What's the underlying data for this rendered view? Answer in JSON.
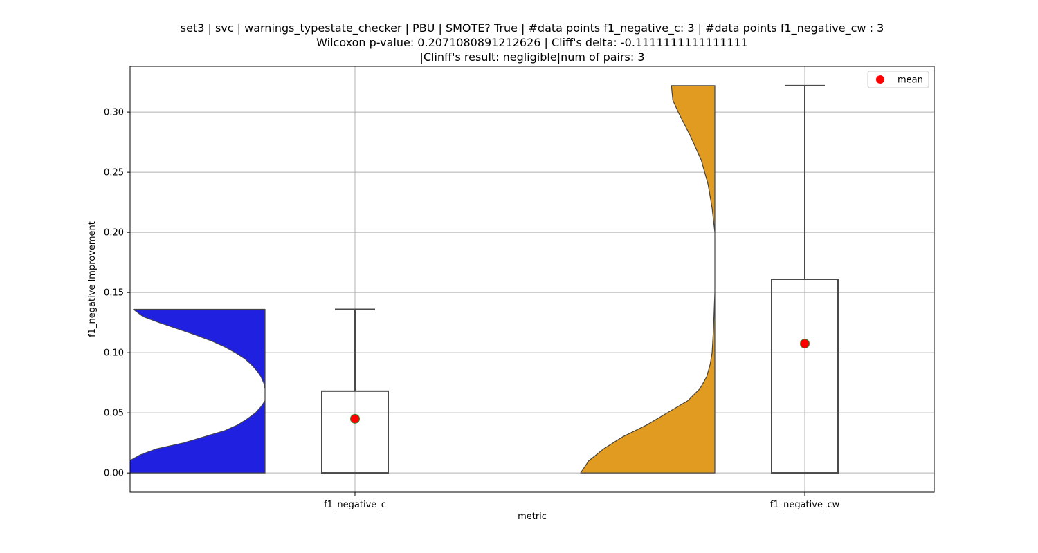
{
  "chart_data": {
    "type": "violin-box",
    "title_lines": [
      "set3 | svc | warnings_typestate_checker | PBU | SMOTE? True | #data points f1_negative_c: 3 | #data points f1_negative_cw : 3",
      "Wilcoxon p-value: 0.2071080891212626 | Cliff's delta: -0.1111111111111111",
      "|Clinff's result: negligible|num of pairs: 3"
    ],
    "xlabel": "metric",
    "ylabel": "f1_negative Improvement",
    "ylim": [
      -0.016,
      0.338
    ],
    "yticks": [
      0.0,
      0.05,
      0.1,
      0.15,
      0.2,
      0.25,
      0.3
    ],
    "ytick_labels": [
      "0.00",
      "0.05",
      "0.10",
      "0.15",
      "0.20",
      "0.25",
      "0.30"
    ],
    "categories": [
      "f1_negative_c",
      "f1_negative_cw"
    ],
    "grid": true,
    "legend": {
      "placement": "top-right",
      "entries": [
        {
          "label": "mean",
          "color": "#ff0000"
        }
      ]
    },
    "series": [
      {
        "category": "f1_negative_c",
        "violin_color": "#2020e0",
        "violin_range": [
          0.0,
          0.136
        ],
        "violin_profile": [
          [
            0.0,
            1.08
          ],
          [
            0.005,
            1.05
          ],
          [
            0.01,
            1.0
          ],
          [
            0.015,
            0.92
          ],
          [
            0.02,
            0.8
          ],
          [
            0.025,
            0.6
          ],
          [
            0.03,
            0.45
          ],
          [
            0.035,
            0.3
          ],
          [
            0.04,
            0.2
          ],
          [
            0.045,
            0.13
          ],
          [
            0.05,
            0.07
          ],
          [
            0.055,
            0.03
          ],
          [
            0.06,
            0.0
          ],
          [
            0.065,
            0.0
          ],
          [
            0.07,
            0.0
          ],
          [
            0.075,
            0.01
          ],
          [
            0.08,
            0.03
          ],
          [
            0.085,
            0.06
          ],
          [
            0.09,
            0.1
          ],
          [
            0.095,
            0.15
          ],
          [
            0.1,
            0.22
          ],
          [
            0.105,
            0.3
          ],
          [
            0.11,
            0.4
          ],
          [
            0.115,
            0.52
          ],
          [
            0.12,
            0.65
          ],
          [
            0.125,
            0.78
          ],
          [
            0.13,
            0.9
          ],
          [
            0.136,
            0.97
          ]
        ],
        "box": {
          "whisker_low": 0.0,
          "q1": 0.0,
          "median": 0.0,
          "q3": 0.068,
          "whisker_high": 0.136
        },
        "mean": 0.045
      },
      {
        "category": "f1_negative_cw",
        "violin_color": "#e09b20",
        "violin_range": [
          0.0,
          0.322
        ],
        "violin_profile": [
          [
            0.0,
            0.99
          ],
          [
            0.01,
            0.93
          ],
          [
            0.02,
            0.82
          ],
          [
            0.03,
            0.68
          ],
          [
            0.04,
            0.5
          ],
          [
            0.05,
            0.35
          ],
          [
            0.06,
            0.2
          ],
          [
            0.07,
            0.11
          ],
          [
            0.08,
            0.06
          ],
          [
            0.09,
            0.035
          ],
          [
            0.1,
            0.02
          ],
          [
            0.12,
            0.01
          ],
          [
            0.15,
            0.0
          ],
          [
            0.18,
            0.0
          ],
          [
            0.2,
            0.0
          ],
          [
            0.22,
            0.02
          ],
          [
            0.24,
            0.05
          ],
          [
            0.26,
            0.1
          ],
          [
            0.28,
            0.18
          ],
          [
            0.3,
            0.27
          ],
          [
            0.31,
            0.31
          ],
          [
            0.322,
            0.32
          ]
        ],
        "box": {
          "whisker_low": 0.0,
          "q1": 0.0,
          "median": 0.0,
          "q3": 0.161,
          "whisker_high": 0.322
        },
        "mean": 0.1075
      }
    ]
  }
}
